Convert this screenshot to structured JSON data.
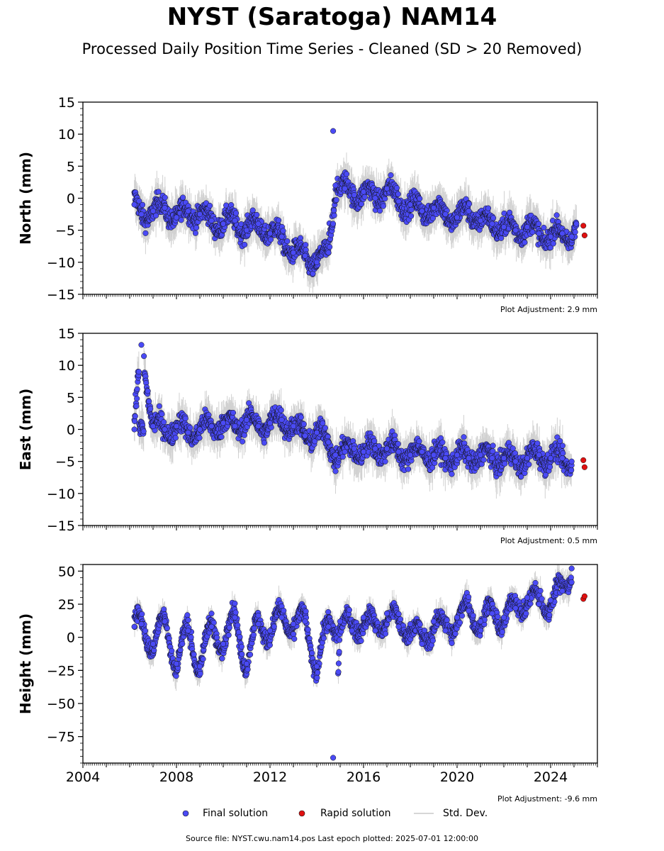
{
  "title": "NYST (Saratoga) NAM14",
  "subtitle": "Processed Daily Position Time Series - Cleaned (SD > 20 Removed)",
  "source_note": "Source file: NYST.cwu.nam14.pos  Last epoch plotted: 2025-07-01 12:00:00",
  "legend": {
    "final": "Final solution",
    "rapid": "Rapid solution",
    "std": "Std. Dev."
  },
  "colors": {
    "final": "#4a4af5",
    "rapid": "#e01010",
    "std": "#b4b4b4",
    "marker_edge": "#111111"
  },
  "chart_data": [
    {
      "type": "scatter",
      "ylabel": "North (mm)",
      "ylim": [
        -15,
        15
      ],
      "yticks": [
        15,
        10,
        5,
        0,
        -5,
        -10,
        -15
      ],
      "ytick_labels": [
        "15",
        "10",
        "5",
        "0",
        "−5",
        "−10",
        "−15"
      ],
      "xlim": [
        2004,
        2026
      ],
      "adjustment": "Plot Adjustment: 2.9 mm",
      "series": [
        {
          "name": "Final solution",
          "x": [
            2006.2,
            2006.5,
            2007.0,
            2007.5,
            2008.0,
            2008.5,
            2009.0,
            2009.5,
            2010.0,
            2010.5,
            2011.0,
            2011.5,
            2012.0,
            2012.5,
            2013.0,
            2013.5,
            2014.0,
            2014.5,
            2014.7,
            2014.8,
            2015.2,
            2015.6,
            2016.0,
            2016.5,
            2017.0,
            2017.5,
            2018.0,
            2018.5,
            2019.0,
            2019.5,
            2020.0,
            2020.5,
            2021.0,
            2021.5,
            2022.0,
            2022.5,
            2023.0,
            2023.5,
            2024.0,
            2024.5,
            2024.9,
            2025.1
          ],
          "y": [
            -1,
            -2.5,
            -2,
            -1.5,
            -3,
            -2,
            -2.5,
            -3.5,
            -4,
            -3.5,
            -5,
            -4,
            -5.5,
            -6,
            -8.5,
            -9,
            -10,
            -8.5,
            10.5,
            2,
            1.5,
            0.5,
            1,
            0,
            1.5,
            -0.5,
            -1,
            -2,
            -1.5,
            -2.5,
            -3,
            -2,
            -3.5,
            -4,
            -4.5,
            -5,
            -4.5,
            -5.5,
            -6,
            -5.5,
            -6,
            -4
          ]
        },
        {
          "name": "Rapid solution",
          "x": [
            2025.4,
            2025.45
          ],
          "y": [
            -4.3,
            -5.8
          ]
        }
      ]
    },
    {
      "type": "scatter",
      "ylabel": "East (mm)",
      "ylim": [
        -15,
        15
      ],
      "yticks": [
        15,
        10,
        5,
        0,
        -5,
        -10,
        -15
      ],
      "ytick_labels": [
        "15",
        "10",
        "5",
        "0",
        "−5",
        "−10",
        "−15"
      ],
      "xlim": [
        2004,
        2026
      ],
      "adjustment": "Plot Adjustment: 0.5 mm",
      "series": [
        {
          "name": "Final solution",
          "x": [
            2006.2,
            2006.5,
            2007.0,
            2007.5,
            2008.0,
            2008.5,
            2009.0,
            2009.5,
            2010.0,
            2010.5,
            2011.0,
            2011.5,
            2012.0,
            2012.5,
            2013.0,
            2013.5,
            2014.0,
            2014.5,
            2014.8,
            2015.2,
            2015.6,
            2016.0,
            2016.5,
            2017.0,
            2017.5,
            2018.0,
            2018.5,
            2019.0,
            2019.5,
            2020.0,
            2020.5,
            2021.0,
            2021.5,
            2022.0,
            2022.5,
            2023.0,
            2023.5,
            2024.0,
            2024.5,
            2024.9
          ],
          "y": [
            0,
            13.2,
            0.5,
            0,
            0.5,
            -0.5,
            0,
            0.5,
            1,
            0.5,
            1.5,
            0.5,
            1,
            1.5,
            0.5,
            -1,
            -0.5,
            -2,
            -4,
            -3.5,
            -3,
            -3.5,
            -3,
            -3,
            -3.5,
            -4,
            -3.5,
            -4,
            -4.5,
            -4,
            -4.5,
            -4,
            -4.5,
            -4.5,
            -5,
            -4.5,
            -4,
            -4.5,
            -4.5,
            -5
          ]
        },
        {
          "name": "Rapid solution",
          "x": [
            2025.4,
            2025.45
          ],
          "y": [
            -4.8,
            -5.9
          ]
        }
      ]
    },
    {
      "type": "scatter",
      "ylabel": "Height (mm)",
      "ylim": [
        -95,
        55
      ],
      "yticks": [
        50,
        25,
        0,
        -25,
        -50,
        -75
      ],
      "ytick_labels": [
        "50",
        "25",
        "0",
        "−25",
        "−50",
        "−75"
      ],
      "xlim": [
        2004,
        2026
      ],
      "xticks": [
        2004,
        2008,
        2012,
        2016,
        2020,
        2024
      ],
      "xtick_labels": [
        "2004",
        "2008",
        "2012",
        "2016",
        "2020",
        "2024"
      ],
      "adjustment": "Plot Adjustment: -9.6 mm",
      "series": [
        {
          "name": "Final solution",
          "x": [
            2006.2,
            2006.5,
            2007.0,
            2007.5,
            2008.0,
            2008.5,
            2009.0,
            2009.5,
            2010.0,
            2010.5,
            2011.0,
            2011.5,
            2012.0,
            2012.5,
            2013.0,
            2013.5,
            2014.0,
            2014.5,
            2014.7,
            2015.0,
            2015.5,
            2016.0,
            2016.5,
            2017.0,
            2017.5,
            2018.0,
            2018.5,
            2019.0,
            2019.5,
            2020.0,
            2020.5,
            2021.0,
            2021.5,
            2022.0,
            2022.5,
            2023.0,
            2023.5,
            2024.0,
            2024.5,
            2024.9
          ],
          "y": [
            8,
            10,
            -5,
            12,
            -20,
            5,
            -22,
            8,
            -5,
            15,
            -20,
            10,
            5,
            15,
            10,
            12,
            -22,
            8,
            -91,
            12,
            5,
            15,
            5,
            18,
            8,
            10,
            -5,
            12,
            5,
            15,
            20,
            12,
            18,
            15,
            22,
            30,
            25,
            28,
            35,
            52
          ]
        },
        {
          "name": "Rapid solution",
          "x": [
            2025.4,
            2025.45
          ],
          "y": [
            29,
            31
          ]
        }
      ]
    }
  ]
}
